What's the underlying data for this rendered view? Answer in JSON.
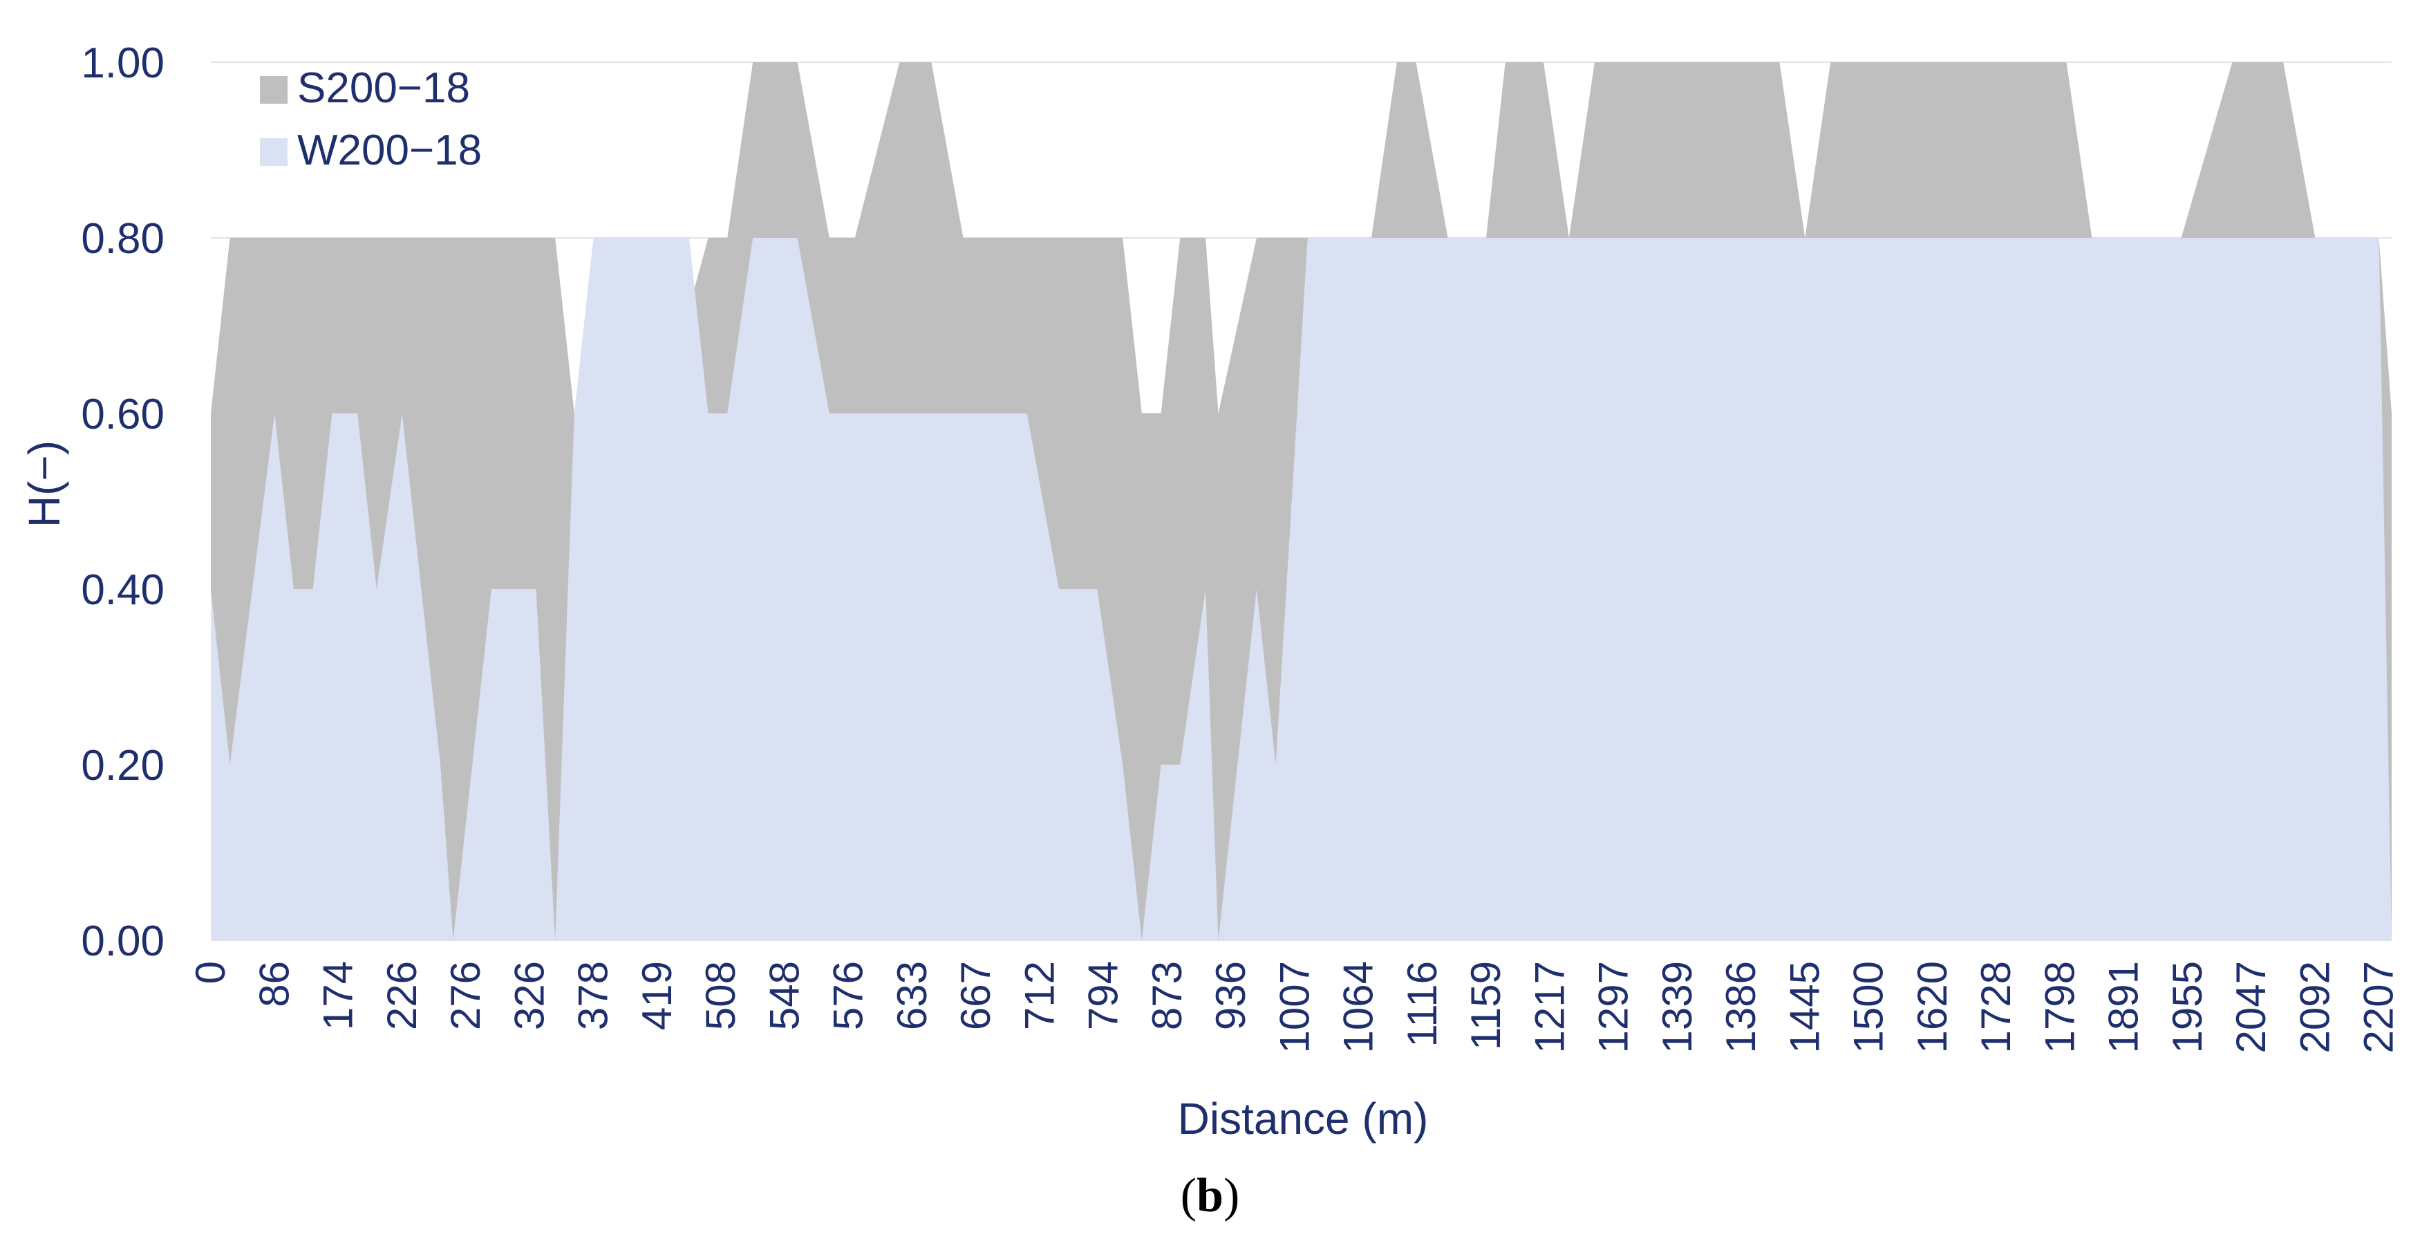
{
  "panel_label": {
    "open": "(",
    "letter": "b",
    "close": ")"
  },
  "colors": {
    "series_1": "#bfbfbf",
    "series_2": "#d9e1f2",
    "axis_text": "#1f2f6e",
    "grid": "#e3e3e3"
  },
  "chart_data": {
    "type": "area",
    "title": "",
    "xlabel": "Distance (m)",
    "ylabel": "H(−)",
    "ylim": [
      0,
      1
    ],
    "y_ticks": [
      "0.00",
      "0.20",
      "0.40",
      "0.60",
      "0.80",
      "1.00"
    ],
    "x_tick_labels": [
      "0",
      "86",
      "174",
      "226",
      "276",
      "326",
      "378",
      "419",
      "508",
      "548",
      "576",
      "633",
      "667",
      "712",
      "794",
      "873",
      "936",
      "1007",
      "1064",
      "1116",
      "1159",
      "1217",
      "1297",
      "1339",
      "1386",
      "1445",
      "1500",
      "1620",
      "1728",
      "1798",
      "1891",
      "1955",
      "2047",
      "2092",
      "2207"
    ],
    "x_index_max": 34.2,
    "grid": true,
    "legend_position": "top-left",
    "series": [
      {
        "name": "S200−18",
        "color": "#bfbfbf",
        "points": [
          [
            0,
            0.6
          ],
          [
            0.3,
            0.8
          ],
          [
            5.4,
            0.8
          ],
          [
            5.7,
            0.6
          ],
          [
            6,
            0.4
          ],
          [
            6.3,
            0.4
          ],
          [
            7.8,
            0.8
          ],
          [
            8.1,
            0.8
          ],
          [
            8.5,
            1.0
          ],
          [
            9.2,
            1.0
          ],
          [
            9.7,
            0.8
          ],
          [
            10.1,
            0.8
          ],
          [
            10.8,
            1.0
          ],
          [
            11.3,
            1.0
          ],
          [
            11.8,
            0.8
          ],
          [
            14.3,
            0.8
          ],
          [
            14.6,
            0.6
          ],
          [
            14.9,
            0.6
          ],
          [
            15.2,
            0.8
          ],
          [
            15.6,
            0.8
          ],
          [
            15.8,
            0.6
          ],
          [
            16.4,
            0.8
          ],
          [
            18.2,
            0.8
          ],
          [
            18.6,
            1.0
          ],
          [
            18.9,
            1.0
          ],
          [
            19.4,
            0.8
          ],
          [
            20.0,
            0.8
          ],
          [
            20.3,
            1.0
          ],
          [
            20.9,
            1.0
          ],
          [
            21.3,
            0.8
          ],
          [
            21.7,
            1.0
          ],
          [
            24.6,
            1.0
          ],
          [
            25.0,
            0.8
          ],
          [
            25.4,
            1.0
          ],
          [
            29.1,
            1.0
          ],
          [
            29.5,
            0.8
          ],
          [
            30.9,
            0.8
          ],
          [
            31.7,
            1.0
          ],
          [
            32.5,
            1.0
          ],
          [
            33.0,
            0.8
          ],
          [
            34.0,
            0.8
          ],
          [
            34.2,
            0.6
          ]
        ]
      },
      {
        "name": "W200−18",
        "color": "#d9e1f2",
        "points": [
          [
            0,
            0.4
          ],
          [
            0.3,
            0.2
          ],
          [
            1.0,
            0.6
          ],
          [
            1.3,
            0.4
          ],
          [
            1.6,
            0.4
          ],
          [
            1.9,
            0.6
          ],
          [
            2.3,
            0.6
          ],
          [
            2.6,
            0.4
          ],
          [
            3.0,
            0.6
          ],
          [
            3.3,
            0.4
          ],
          [
            3.6,
            0.2
          ],
          [
            3.8,
            0.0
          ],
          [
            4.1,
            0.2
          ],
          [
            4.4,
            0.4
          ],
          [
            5.1,
            0.4
          ],
          [
            5.4,
            0.0
          ],
          [
            5.7,
            0.6
          ],
          [
            6.0,
            0.8
          ],
          [
            7.5,
            0.8
          ],
          [
            7.8,
            0.6
          ],
          [
            8.1,
            0.6
          ],
          [
            8.5,
            0.8
          ],
          [
            9.2,
            0.8
          ],
          [
            9.7,
            0.6
          ],
          [
            12.8,
            0.6
          ],
          [
            13.3,
            0.4
          ],
          [
            13.9,
            0.4
          ],
          [
            14.3,
            0.2
          ],
          [
            14.6,
            0.0
          ],
          [
            14.9,
            0.2
          ],
          [
            15.2,
            0.2
          ],
          [
            15.6,
            0.4
          ],
          [
            15.8,
            0.0
          ],
          [
            16.4,
            0.4
          ],
          [
            16.7,
            0.2
          ],
          [
            17.2,
            0.8
          ],
          [
            34.0,
            0.8
          ],
          [
            34.2,
            0.0
          ]
        ]
      }
    ]
  }
}
